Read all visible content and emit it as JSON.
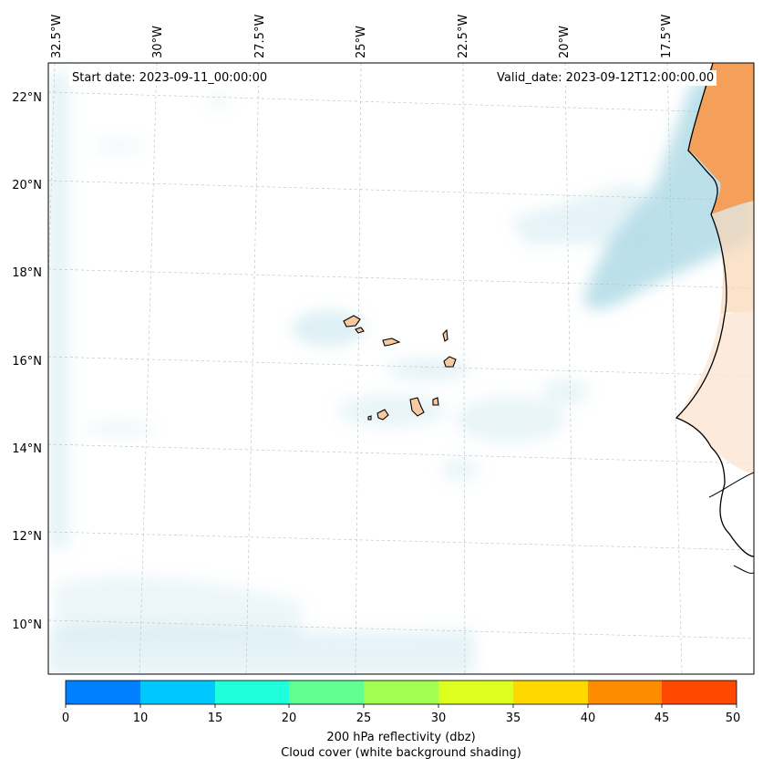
{
  "map": {
    "start_date": "Start date: 2023-09-11_00:00:00",
    "valid_date": "Valid_date: 2023-09-12T12:00:00.00",
    "lon_labels": [
      "32.5°W",
      "30°W",
      "27.5°W",
      "25°W",
      "22.5°W",
      "20°W",
      "17.5°W"
    ],
    "lat_labels": [
      "22°N",
      "20°N",
      "18°N",
      "16°N",
      "14°N",
      "12°N",
      "10°N"
    ],
    "region": "Cape Verde / West Africa coast",
    "colors": {
      "cloud_shading": "#b5dde8",
      "land_fill": "#f4a05a",
      "island_fill": "#f6c9a0",
      "coastline": "#000000"
    }
  },
  "colorbar": {
    "ticks": [
      "0",
      "10",
      "15",
      "20",
      "25",
      "30",
      "35",
      "40",
      "45",
      "50"
    ],
    "colors": [
      "#0080ff",
      "#00c8ff",
      "#20ffdc",
      "#60ff90",
      "#a0ff50",
      "#dcff20",
      "#ffd800",
      "#ff8c00",
      "#ff4800"
    ],
    "label": "200 hPa reflectivity (dbz)",
    "sublabel": "Cloud cover (white background shading)"
  }
}
